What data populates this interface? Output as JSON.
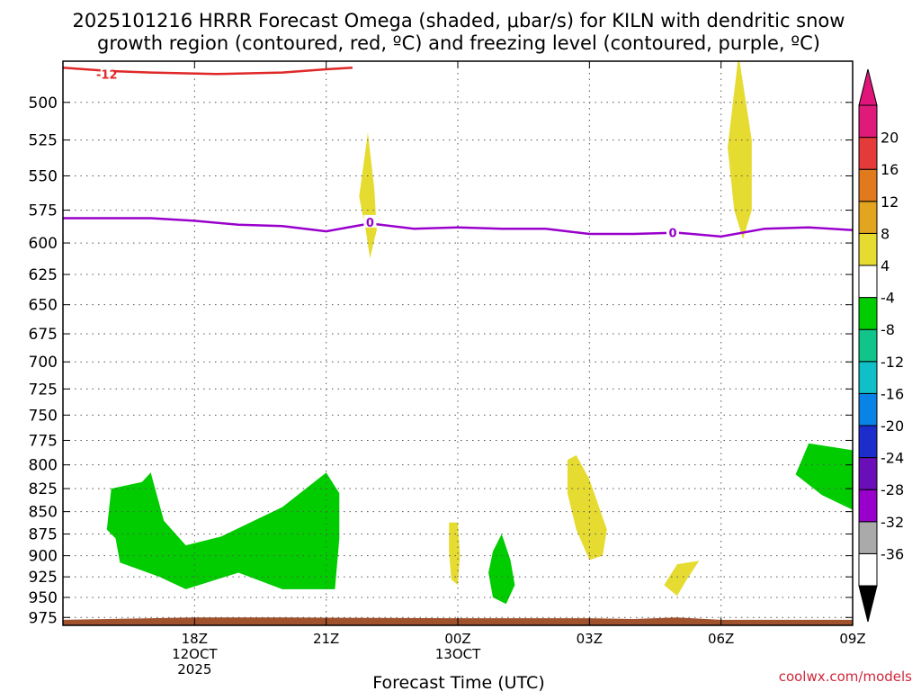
{
  "header": {
    "title_line1": "2025101216 HRRR Forecast Omega (shaded, μbar/s) for KILN with dendritic snow",
    "title_line2": "growth region (contoured, red, ºC) and freezing level (contoured, purple, ºC)"
  },
  "footer": {
    "credit": "coolwx.com/models"
  },
  "chart_data": {
    "type": "heatmap",
    "xlabel": "Forecast Time (UTC)",
    "xlim_hours": [
      15.0,
      33.0
    ],
    "x_ticks": [
      {
        "hour": 18,
        "lines": [
          "18Z",
          "12OCT",
          "2025"
        ]
      },
      {
        "hour": 21,
        "lines": [
          "21Z"
        ]
      },
      {
        "hour": 24,
        "lines": [
          "00Z",
          "13OCT"
        ]
      },
      {
        "hour": 27,
        "lines": [
          "03Z"
        ]
      },
      {
        "hour": 30,
        "lines": [
          "06Z"
        ]
      },
      {
        "hour": 33,
        "lines": [
          "09Z"
        ]
      }
    ],
    "y_axis": {
      "unit": "hPa",
      "scale": "log",
      "ylim": [
        474,
        985
      ],
      "inverted": true,
      "ticks": [
        500,
        525,
        550,
        575,
        600,
        625,
        650,
        675,
        700,
        725,
        750,
        775,
        800,
        825,
        850,
        875,
        900,
        925,
        950,
        975
      ]
    },
    "grid": true,
    "shaded_regions": [
      {
        "name": "omega-green-west",
        "color": "#00cc00",
        "points": [
          [
            16.0,
            870
          ],
          [
            16.1,
            825
          ],
          [
            16.8,
            818
          ],
          [
            17.0,
            808
          ],
          [
            17.3,
            860
          ],
          [
            17.8,
            888
          ],
          [
            18.6,
            878
          ],
          [
            20.0,
            845
          ],
          [
            21.0,
            808
          ],
          [
            21.3,
            830
          ],
          [
            21.3,
            880
          ],
          [
            21.2,
            940
          ],
          [
            20.0,
            940
          ],
          [
            19.0,
            920
          ],
          [
            17.8,
            940
          ],
          [
            17.2,
            925
          ],
          [
            16.3,
            908
          ],
          [
            16.2,
            880
          ]
        ]
      },
      {
        "name": "omega-green-01z",
        "color": "#00cc00",
        "points": [
          [
            25.0,
            875
          ],
          [
            25.2,
            905
          ],
          [
            25.3,
            935
          ],
          [
            25.1,
            958
          ],
          [
            24.8,
            950
          ],
          [
            24.7,
            920
          ],
          [
            24.8,
            895
          ]
        ]
      },
      {
        "name": "omega-green-east",
        "color": "#00cc00",
        "points": [
          [
            32.0,
            778
          ],
          [
            33.0,
            785
          ],
          [
            33.0,
            848
          ],
          [
            32.3,
            832
          ],
          [
            31.7,
            810
          ]
        ]
      },
      {
        "name": "omega-yellow-21z",
        "color": "#e6db31",
        "points": [
          [
            21.95,
            520
          ],
          [
            22.1,
            560
          ],
          [
            22.15,
            590
          ],
          [
            22.0,
            612
          ],
          [
            21.9,
            590
          ],
          [
            21.75,
            565
          ]
        ]
      },
      {
        "name": "omega-yellow-06z",
        "color": "#e6db31",
        "points": [
          [
            30.4,
            470
          ],
          [
            30.7,
            525
          ],
          [
            30.7,
            575
          ],
          [
            30.5,
            597
          ],
          [
            30.3,
            575
          ],
          [
            30.15,
            530
          ]
        ]
      },
      {
        "name": "omega-yellow-00z",
        "color": "#e6db31",
        "points": [
          [
            23.8,
            862
          ],
          [
            24.0,
            862
          ],
          [
            24.05,
            900
          ],
          [
            24.0,
            935
          ],
          [
            23.85,
            928
          ],
          [
            23.8,
            895
          ]
        ]
      },
      {
        "name": "omega-yellow-02z",
        "color": "#e6db31",
        "points": [
          [
            26.5,
            795
          ],
          [
            26.7,
            790
          ],
          [
            27.0,
            815
          ],
          [
            27.4,
            870
          ],
          [
            27.3,
            900
          ],
          [
            27.0,
            905
          ],
          [
            26.7,
            870
          ],
          [
            26.5,
            830
          ]
        ]
      },
      {
        "name": "omega-yellow-04z",
        "color": "#e6db31",
        "points": [
          [
            28.7,
            935
          ],
          [
            29.0,
            910
          ],
          [
            29.5,
            906
          ],
          [
            29.2,
            930
          ],
          [
            29.0,
            948
          ]
        ]
      }
    ],
    "contours": [
      {
        "name": "dgz-minus12",
        "color": "#e02828",
        "label": "-12",
        "label_at": [
          16.0,
          482
        ],
        "points": [
          [
            15.0,
            478
          ],
          [
            16.0,
            480
          ],
          [
            17.0,
            481
          ],
          [
            18.5,
            482
          ],
          [
            20.0,
            481
          ],
          [
            21.0,
            479
          ],
          [
            21.6,
            478
          ]
        ]
      },
      {
        "name": "freezing-level",
        "color": "#9900cc",
        "label": "0",
        "label_ats": [
          [
            22.0,
            584
          ],
          [
            28.9,
            592
          ]
        ],
        "points": [
          [
            15.0,
            581
          ],
          [
            17.0,
            581
          ],
          [
            18.0,
            583
          ],
          [
            19.0,
            586
          ],
          [
            20.0,
            587
          ],
          [
            21.0,
            591
          ],
          [
            22.0,
            585
          ],
          [
            23.0,
            589
          ],
          [
            24.0,
            588
          ],
          [
            25.0,
            589
          ],
          [
            26.0,
            589
          ],
          [
            27.0,
            593
          ],
          [
            28.0,
            593
          ],
          [
            29.0,
            592
          ],
          [
            30.0,
            595
          ],
          [
            31.0,
            589
          ],
          [
            32.0,
            588
          ],
          [
            33.0,
            590
          ]
        ]
      }
    ],
    "terrain": {
      "name": "ground",
      "color": "#a0522d",
      "points": [
        [
          15.0,
          978
        ],
        [
          17.0,
          976
        ],
        [
          18.0,
          975
        ],
        [
          20.0,
          975
        ],
        [
          24.0,
          976
        ],
        [
          27.0,
          976
        ],
        [
          28.0,
          977
        ],
        [
          29.0,
          975
        ],
        [
          30.0,
          978
        ],
        [
          33.0,
          978
        ]
      ]
    },
    "colorbar": {
      "colors": [
        "#ffffff",
        "#aaaaaa",
        "#9900cc",
        "#6a0fb8",
        "#1c2dcc",
        "#0a83e6",
        "#10bfc8",
        "#10c48a",
        "#00cc00",
        "#ffffff",
        "#e6db31",
        "#e3a520",
        "#e07a1d",
        "#e53a3a",
        "#e01a7a"
      ],
      "labels": [
        "-36",
        "-32",
        "-28",
        "-24",
        "-20",
        "-16",
        "-12",
        "-8",
        "-4",
        "4",
        "8",
        "12",
        "16",
        "20"
      ],
      "under_color": "#000000",
      "over_color": "#e0157a"
    }
  }
}
